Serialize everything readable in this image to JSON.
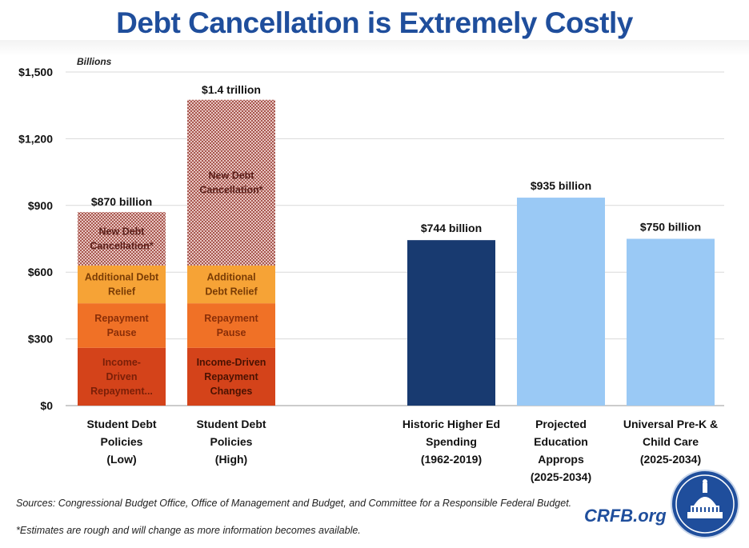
{
  "title": "Debt Cancellation is Extremely Costly",
  "sources": "Sources: Congressional Budget Office, Office of Management and Budget, and Committee for a Responsible Federal Budget.",
  "note": "*Estimates are rough and will change as more information becomes available.",
  "brand": "CRFB.org",
  "chart_data": {
    "type": "bar",
    "unit_label": "Billions",
    "ylim": [
      0,
      1500
    ],
    "yticks": [
      0,
      300,
      600,
      900,
      1200,
      1500
    ],
    "ytick_labels": [
      "$0",
      "$300",
      "$600",
      "$900",
      "$1,200",
      "$1,500"
    ],
    "grid": true,
    "stacked_bars": [
      {
        "category": [
          "Student Debt",
          "Policies",
          "(Low)"
        ],
        "total_label": "$870 billion",
        "segments": [
          {
            "name": "Income-Driven Repayment...",
            "lines": [
              "Income-",
              "Driven",
              "Repayment..."
            ],
            "value": 260,
            "color": "#d4431a",
            "text_color": "#7a1f08"
          },
          {
            "name": "Repayment Pause",
            "lines": [
              "Repayment",
              "Pause"
            ],
            "value": 200,
            "color": "#f07126",
            "text_color": "#8a2e08"
          },
          {
            "name": "Additional Debt Relief",
            "lines": [
              "Additional Debt",
              "Relief"
            ],
            "value": 170,
            "color": "#f6a336",
            "text_color": "#7a3c05"
          },
          {
            "name": "New Debt Cancellation*",
            "lines": [
              "New Debt",
              "Cancellation*"
            ],
            "value": 240,
            "color": "#c98a84",
            "text_color": "#5a1f1a",
            "hatched": true
          }
        ]
      },
      {
        "category": [
          "Student Debt",
          "Policies",
          "(High)"
        ],
        "total_label": "$1.4 trillion",
        "segments": [
          {
            "name": "Income-Driven Repayment Changes",
            "lines": [
              "Income-Driven",
              "Repayment",
              "Changes"
            ],
            "value": 260,
            "color": "#d4431a",
            "text_color": "#4a1202"
          },
          {
            "name": "Repayment Pause",
            "lines": [
              "Repayment",
              "Pause"
            ],
            "value": 200,
            "color": "#f07126",
            "text_color": "#8a2e08"
          },
          {
            "name": "Additional Debt Relief",
            "lines": [
              "Additional",
              "Debt Relief"
            ],
            "value": 170,
            "color": "#f6a336",
            "text_color": "#7a3c05"
          },
          {
            "name": "New Debt Cancellation*",
            "lines": [
              "New Debt",
              "Cancellation*"
            ],
            "value": 745,
            "color": "#c98a84",
            "text_color": "#5a1f1a",
            "hatched": true
          }
        ]
      }
    ],
    "simple_bars": [
      {
        "category": [
          "Historic Higher Ed",
          "Spending",
          "(1962-2019)"
        ],
        "value": 744,
        "label": "$744 billion",
        "color": "#183a70"
      },
      {
        "category": [
          "Projected",
          "Education",
          "Approps",
          "(2025-2034)"
        ],
        "value": 935,
        "label": "$935 billion",
        "color": "#9ac9f5"
      },
      {
        "category": [
          "Universal Pre-K &",
          "Child Care",
          "(2025-2034)"
        ],
        "value": 750,
        "label": "$750 billion",
        "color": "#9ac9f5"
      }
    ]
  }
}
